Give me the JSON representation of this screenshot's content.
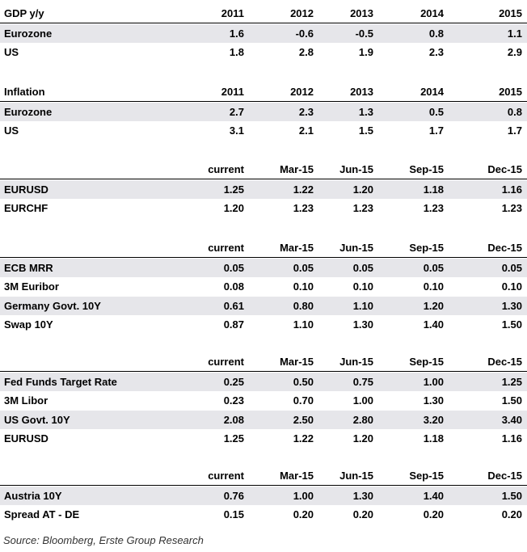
{
  "tables": [
    {
      "header": {
        "label": "GDP y/y",
        "cols": [
          "2011",
          "2012",
          "2013",
          "2014",
          "2015"
        ]
      },
      "rows": [
        {
          "label": "Eurozone",
          "values": [
            "1.6",
            "-0.6",
            "-0.5",
            "0.8",
            "1.1"
          ]
        },
        {
          "label": "US",
          "values": [
            "1.8",
            "2.8",
            "1.9",
            "2.3",
            "2.9"
          ]
        }
      ]
    },
    {
      "header": {
        "label": "Inflation",
        "cols": [
          "2011",
          "2012",
          "2013",
          "2014",
          "2015"
        ]
      },
      "rows": [
        {
          "label": "Eurozone",
          "values": [
            "2.7",
            "2.3",
            "1.3",
            "0.5",
            "0.8"
          ]
        },
        {
          "label": "US",
          "values": [
            "3.1",
            "2.1",
            "1.5",
            "1.7",
            "1.7"
          ]
        }
      ]
    },
    {
      "header": {
        "label": "",
        "cols": [
          "current",
          "Mar-15",
          "Jun-15",
          "Sep-15",
          "Dec-15"
        ]
      },
      "rows": [
        {
          "label": "EURUSD",
          "values": [
            "1.25",
            "1.22",
            "1.20",
            "1.18",
            "1.16"
          ]
        },
        {
          "label": "EURCHF",
          "values": [
            "1.20",
            "1.23",
            "1.23",
            "1.23",
            "1.23"
          ]
        }
      ]
    },
    {
      "header": {
        "label": "",
        "cols": [
          "current",
          "Mar-15",
          "Jun-15",
          "Sep-15",
          "Dec-15"
        ]
      },
      "rows": [
        {
          "label": "ECB MRR",
          "values": [
            "0.05",
            "0.05",
            "0.05",
            "0.05",
            "0.05"
          ]
        },
        {
          "label": "3M Euribor",
          "values": [
            "0.08",
            "0.10",
            "0.10",
            "0.10",
            "0.10"
          ]
        },
        {
          "label": "Germany Govt. 10Y",
          "values": [
            "0.61",
            "0.80",
            "1.10",
            "1.20",
            "1.30"
          ]
        },
        {
          "label": "Swap 10Y",
          "values": [
            "0.87",
            "1.10",
            "1.30",
            "1.40",
            "1.50"
          ]
        }
      ]
    },
    {
      "header": {
        "label": "",
        "cols": [
          "current",
          "Mar-15",
          "Jun-15",
          "Sep-15",
          "Dec-15"
        ]
      },
      "rows": [
        {
          "label": "Fed Funds Target Rate",
          "values": [
            "0.25",
            "0.50",
            "0.75",
            "1.00",
            "1.25"
          ]
        },
        {
          "label": "3M Libor",
          "values": [
            "0.23",
            "0.70",
            "1.00",
            "1.30",
            "1.50"
          ]
        },
        {
          "label": "US Govt. 10Y",
          "values": [
            "2.08",
            "2.50",
            "2.80",
            "3.20",
            "3.40"
          ]
        },
        {
          "label": "EURUSD",
          "values": [
            "1.25",
            "1.22",
            "1.20",
            "1.18",
            "1.16"
          ]
        }
      ]
    },
    {
      "header": {
        "label": "",
        "cols": [
          "current",
          "Mar-15",
          "Jun-15",
          "Sep-15",
          "Dec-15"
        ]
      },
      "rows": [
        {
          "label": "Austria 10Y",
          "values": [
            "0.76",
            "1.00",
            "1.30",
            "1.40",
            "1.50"
          ]
        },
        {
          "label": "Spread AT - DE",
          "values": [
            "0.15",
            "0.20",
            "0.20",
            "0.20",
            "0.20"
          ]
        }
      ]
    }
  ],
  "source": "Source: Bloomberg, Erste Group Research",
  "colors": {
    "shade": "#e6e6ea",
    "rule": "#000000"
  }
}
